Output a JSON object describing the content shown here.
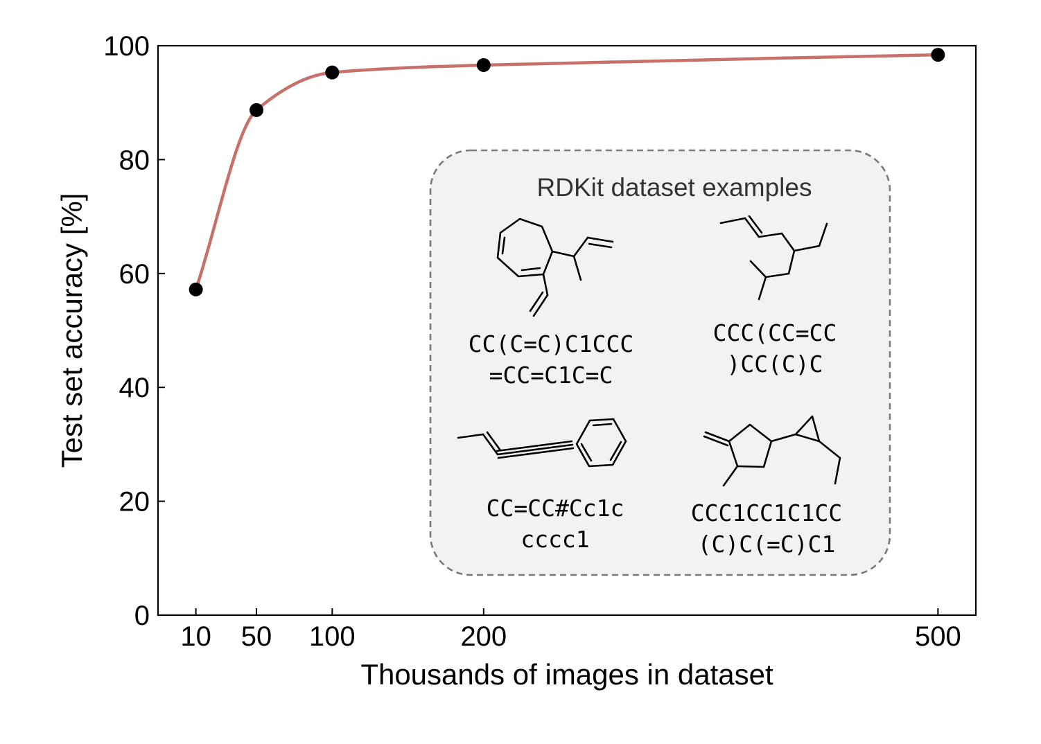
{
  "chart_data": {
    "type": "line",
    "title": "",
    "xlabel": "Thousands of images in dataset",
    "ylabel": "Test set accuracy [%]",
    "x_ticks": [
      10,
      50,
      100,
      200,
      500
    ],
    "y_ticks": [
      0,
      20,
      40,
      60,
      80,
      100
    ],
    "xlim": [
      -15,
      525
    ],
    "ylim": [
      0,
      100
    ],
    "series": [
      {
        "x": [
          10,
          50,
          100,
          200,
          500
        ],
        "y": [
          57.2,
          88.7,
          95.3,
          96.6,
          98.4
        ],
        "line_color": "#c8716b",
        "marker_color": "#000000"
      }
    ],
    "grid": false,
    "legend": "none"
  },
  "inset": {
    "title": "RDKit dataset examples",
    "molecules": [
      {
        "smiles_line1": "CC(C=C)C1CCC",
        "smiles_line2": "=CC=C1C=C"
      },
      {
        "smiles_line1": "CCC(CC=CC",
        "smiles_line2": ")CC(C)C"
      },
      {
        "smiles_line1": "CC=CC#Cc1c",
        "smiles_line2": "cccc1"
      },
      {
        "smiles_line1": "CCC1CC1C1CC",
        "smiles_line2": "(C)C(=C)C1"
      }
    ]
  }
}
